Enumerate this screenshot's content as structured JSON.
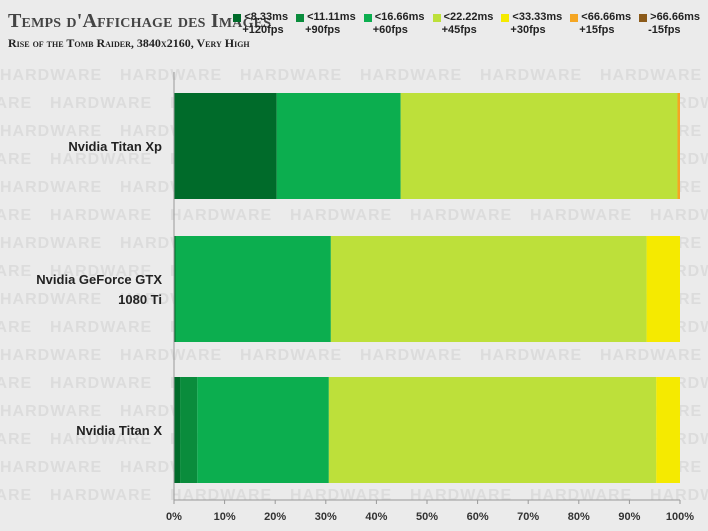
{
  "chart_data": {
    "type": "bar",
    "orientation": "horizontal",
    "stacked": true,
    "title": "Temps d'Affichage des Images",
    "subtitle": "Rise of the Tomb Raider, 3840x2160, Very High",
    "watermark": "HARDWARE",
    "categories": [
      "Nvidia Titan Xp",
      "Nvidia GeForce GTX 1080 Ti",
      "Nvidia Titan X"
    ],
    "category_lines": [
      [
        "Nvidia Titan Xp"
      ],
      [
        "Nvidia GeForce GTX",
        "1080 Ti"
      ],
      [
        "Nvidia Titan X"
      ]
    ],
    "xlim": [
      0,
      100
    ],
    "x_ticks": [
      "0%",
      "10%",
      "20%",
      "30%",
      "40%",
      "50%",
      "60%",
      "70%",
      "80%",
      "90%",
      "100%"
    ],
    "legend_position": "top-right",
    "series": [
      {
        "name": "<8.33ms",
        "sub": "+120fps",
        "color": "#006b2a",
        "values": [
          20.3,
          0.3,
          1.2
        ]
      },
      {
        "name": "<11.11ms",
        "sub": "+90fps",
        "color": "#0a8c3c",
        "values": [
          0.0,
          0.0,
          3.4
        ]
      },
      {
        "name": "<16.66ms",
        "sub": "+60fps",
        "color": "#0cae4f",
        "values": [
          24.5,
          30.7,
          26.0
        ]
      },
      {
        "name": "<22.22ms",
        "sub": "+45fps",
        "color": "#bde03a",
        "values": [
          54.7,
          62.4,
          64.7
        ]
      },
      {
        "name": "<33.33ms",
        "sub": "+30fps",
        "color": "#f5ea00",
        "values": [
          0.0,
          6.6,
          4.7
        ]
      },
      {
        "name": "<66.66ms",
        "sub": "+15fps",
        "color": "#f5a623",
        "values": [
          0.5,
          0.0,
          0.0
        ]
      },
      {
        "name": ">66.66ms",
        "sub": "-15fps",
        "color": "#8b5a1a",
        "values": [
          0.0,
          0.0,
          0.0
        ]
      }
    ]
  }
}
